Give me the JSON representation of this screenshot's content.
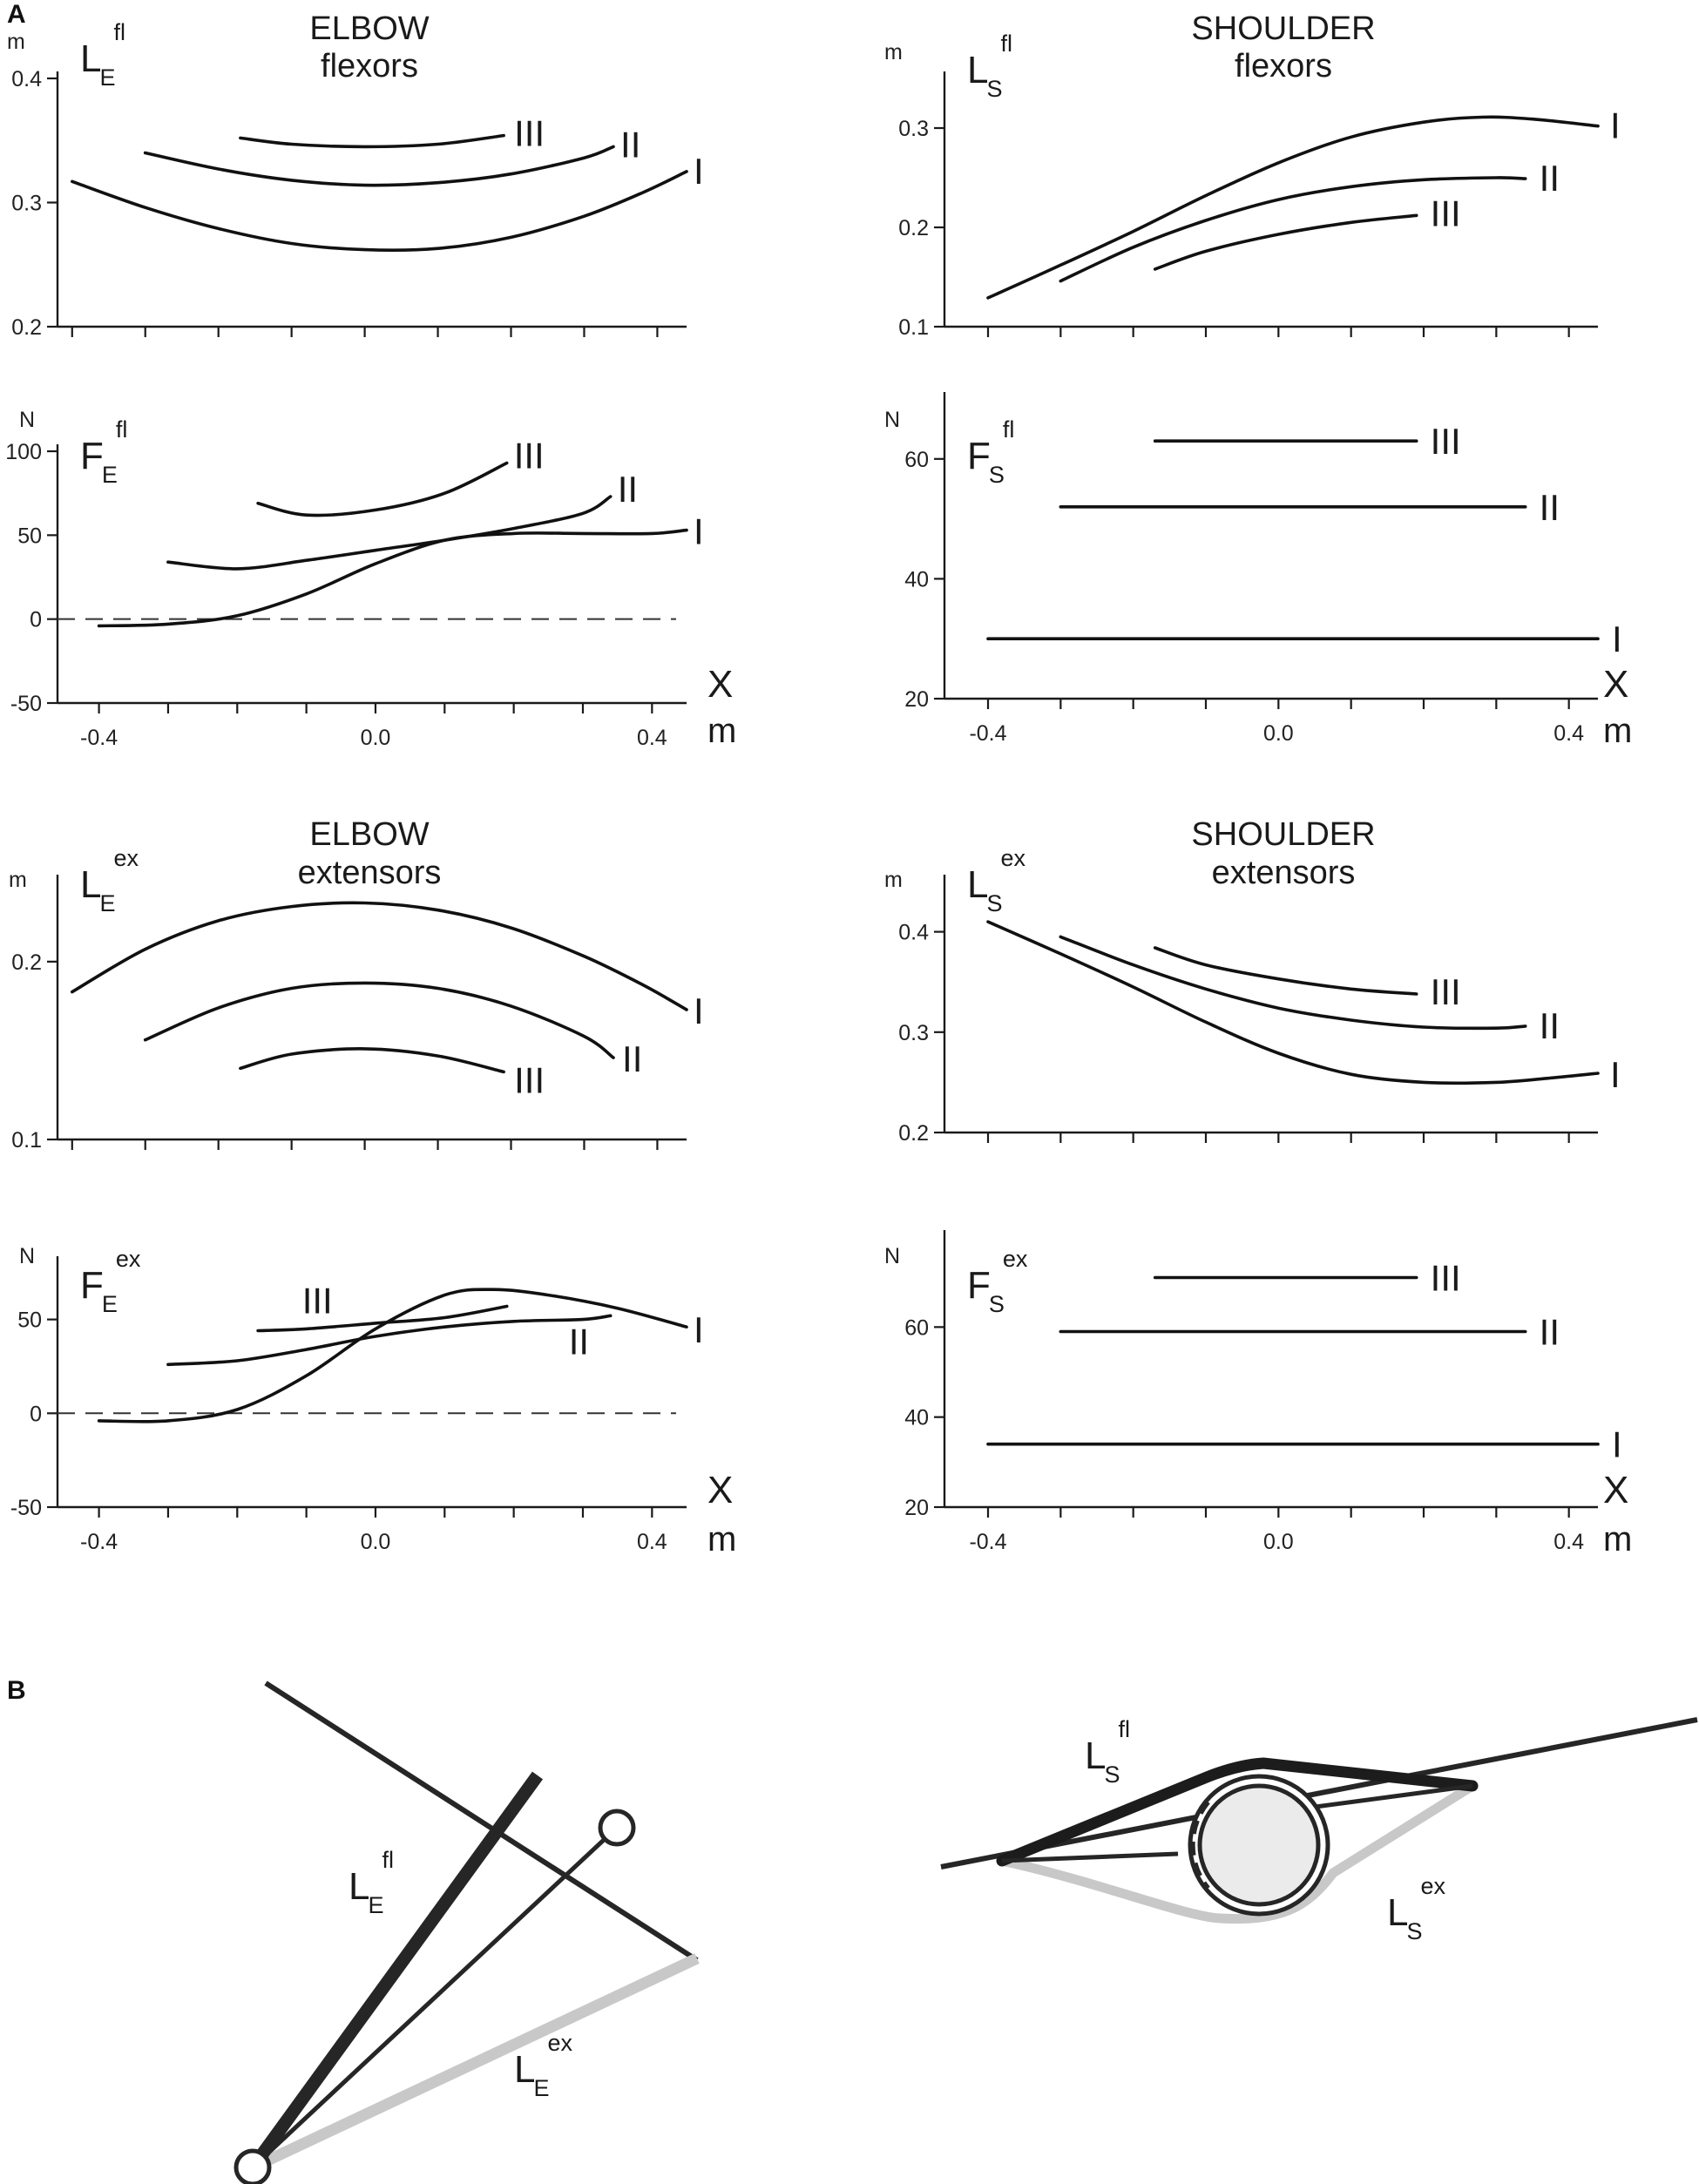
{
  "panel_letters": {
    "a": "A",
    "b": "B"
  },
  "titles": {
    "elbow_flexors": [
      "ELBOW",
      "flexors"
    ],
    "shoulder_flexors": [
      "SHOULDER",
      "flexors"
    ],
    "elbow_extensors": [
      "ELBOW",
      "extensors"
    ],
    "shoulder_extensors": [
      "SHOULDER",
      "extensors"
    ]
  },
  "colors": {
    "ink": "#1a1a1a",
    "grey_muscle": "#c8c8c8",
    "joint_fill": "#ebebeb"
  },
  "chart_data": [
    {
      "id": "LE_fl",
      "type": "line",
      "ylabel": {
        "main": "L",
        "sub": "E",
        "sup": "fl"
      },
      "unit": "m",
      "xlim": [
        -0.42,
        0.44
      ],
      "ylim": [
        0.2,
        0.4
      ],
      "yticks": [
        0.2,
        0.3,
        0.4
      ],
      "ytick_labels": [
        "0.2",
        "0.3",
        "0.4"
      ],
      "xticks": [
        -0.4,
        -0.3,
        -0.2,
        -0.1,
        0.0,
        0.1,
        0.2,
        0.3,
        0.4
      ],
      "series": [
        {
          "name": "I",
          "x": [
            -0.4,
            -0.3,
            -0.2,
            -0.1,
            0.0,
            0.1,
            0.2,
            0.3,
            0.38,
            0.44
          ],
          "y": [
            0.317,
            0.296,
            0.279,
            0.267,
            0.262,
            0.263,
            0.272,
            0.289,
            0.308,
            0.325
          ]
        },
        {
          "name": "II",
          "x": [
            -0.3,
            -0.2,
            -0.1,
            0.0,
            0.1,
            0.2,
            0.3,
            0.34
          ],
          "y": [
            0.34,
            0.327,
            0.318,
            0.314,
            0.316,
            0.323,
            0.336,
            0.345
          ]
        },
        {
          "name": "III",
          "x": [
            -0.17,
            -0.1,
            0.0,
            0.1,
            0.19
          ],
          "y": [
            0.352,
            0.347,
            0.345,
            0.347,
            0.354
          ]
        }
      ]
    },
    {
      "id": "LS_fl",
      "type": "line",
      "ylabel": {
        "main": "L",
        "sub": "S",
        "sup": "fl"
      },
      "unit": "m",
      "xlim": [
        -0.46,
        0.44
      ],
      "ylim": [
        0.1,
        0.35
      ],
      "yticks": [
        0.1,
        0.2,
        0.3
      ],
      "ytick_labels": [
        "0.1",
        "0.2",
        "0.3"
      ],
      "xticks": [
        -0.4,
        -0.3,
        -0.2,
        -0.1,
        0.0,
        0.1,
        0.2,
        0.3,
        0.4
      ],
      "series": [
        {
          "name": "I",
          "x": [
            -0.4,
            -0.3,
            -0.2,
            -0.1,
            0.0,
            0.1,
            0.2,
            0.28,
            0.35,
            0.44
          ],
          "y": [
            0.129,
            0.162,
            0.196,
            0.232,
            0.265,
            0.291,
            0.306,
            0.311,
            0.309,
            0.302
          ]
        },
        {
          "name": "II",
          "x": [
            -0.3,
            -0.2,
            -0.1,
            0.0,
            0.1,
            0.2,
            0.3,
            0.34
          ],
          "y": [
            0.146,
            0.18,
            0.207,
            0.228,
            0.241,
            0.248,
            0.25,
            0.249
          ]
        },
        {
          "name": "III",
          "x": [
            -0.17,
            -0.1,
            0.0,
            0.1,
            0.19
          ],
          "y": [
            0.158,
            0.176,
            0.193,
            0.205,
            0.212
          ]
        }
      ]
    },
    {
      "id": "FE_fl",
      "type": "line",
      "ylabel": {
        "main": "F",
        "sub": "E",
        "sup": "fl"
      },
      "unit": "N",
      "xlim": [
        -0.46,
        0.45
      ],
      "ylim": [
        -50,
        100
      ],
      "yticks": [
        -50,
        0,
        50,
        100
      ],
      "ytick_labels": [
        "-50",
        "0",
        "50",
        "100"
      ],
      "xticks": [
        -0.4,
        -0.3,
        -0.2,
        -0.1,
        0.0,
        0.1,
        0.2,
        0.3,
        0.4
      ],
      "xtick_labels": [
        "-0.4",
        "0.0",
        "0.4"
      ],
      "xtick_label_values": [
        -0.4,
        0.0,
        0.4
      ],
      "xlabel": "X",
      "xunit": "m",
      "zero_line": true,
      "series": [
        {
          "name": "I",
          "x": [
            -0.4,
            -0.3,
            -0.2,
            -0.1,
            0.0,
            0.1,
            0.2,
            0.3,
            0.4,
            0.45
          ],
          "y": [
            -4,
            -3,
            2,
            15,
            33,
            47,
            51,
            51,
            51,
            53
          ]
        },
        {
          "name": "II",
          "x": [
            -0.3,
            -0.2,
            -0.1,
            0.0,
            0.1,
            0.2,
            0.3,
            0.34
          ],
          "y": [
            34,
            30,
            35,
            41,
            47,
            54,
            63,
            73
          ]
        },
        {
          "name": "III",
          "x": [
            -0.17,
            -0.1,
            0.0,
            0.1,
            0.19
          ],
          "y": [
            69,
            62,
            65,
            75,
            93
          ]
        }
      ]
    },
    {
      "id": "FS_fl",
      "type": "line",
      "ylabel": {
        "main": "F",
        "sub": "S",
        "sup": "fl"
      },
      "unit": "N",
      "xlim": [
        -0.46,
        0.44
      ],
      "ylim": [
        20,
        70
      ],
      "yticks": [
        20,
        40,
        60
      ],
      "ytick_labels": [
        "20",
        "40",
        "60"
      ],
      "xticks": [
        -0.4,
        -0.3,
        -0.2,
        -0.1,
        0.0,
        0.1,
        0.2,
        0.3,
        0.4
      ],
      "xtick_labels": [
        "-0.4",
        "0.0",
        "0.4"
      ],
      "xtick_label_values": [
        -0.4,
        0.0,
        0.4
      ],
      "xlabel": "X",
      "xunit": "m",
      "series": [
        {
          "name": "I",
          "x": [
            -0.4,
            0.44
          ],
          "y": [
            30,
            30
          ]
        },
        {
          "name": "II",
          "x": [
            -0.3,
            0.34
          ],
          "y": [
            52,
            52
          ]
        },
        {
          "name": "III",
          "x": [
            -0.17,
            0.19
          ],
          "y": [
            63,
            63
          ]
        }
      ]
    },
    {
      "id": "LE_ex",
      "type": "line",
      "ylabel": {
        "main": "L",
        "sub": "E",
        "sup": "ex"
      },
      "unit": "m",
      "xlim": [
        -0.42,
        0.44
      ],
      "ylim": [
        0.1,
        0.245
      ],
      "yticks": [
        0.1,
        0.2
      ],
      "ytick_labels": [
        "0.1",
        "0.2"
      ],
      "xticks": [
        -0.4,
        -0.3,
        -0.2,
        -0.1,
        0.0,
        0.1,
        0.2,
        0.3,
        0.4
      ],
      "series": [
        {
          "name": "I",
          "x": [
            -0.4,
            -0.3,
            -0.2,
            -0.1,
            0.0,
            0.1,
            0.2,
            0.3,
            0.38,
            0.44
          ],
          "y": [
            0.183,
            0.207,
            0.223,
            0.231,
            0.233,
            0.229,
            0.219,
            0.203,
            0.187,
            0.173
          ]
        },
        {
          "name": "II",
          "x": [
            -0.3,
            -0.2,
            -0.1,
            0.0,
            0.1,
            0.2,
            0.3,
            0.34
          ],
          "y": [
            0.156,
            0.174,
            0.185,
            0.188,
            0.185,
            0.175,
            0.158,
            0.146
          ]
        },
        {
          "name": "III",
          "x": [
            -0.17,
            -0.1,
            0.0,
            0.1,
            0.19
          ],
          "y": [
            0.14,
            0.148,
            0.151,
            0.147,
            0.138
          ]
        }
      ]
    },
    {
      "id": "LS_ex",
      "type": "line",
      "ylabel": {
        "main": "L",
        "sub": "S",
        "sup": "ex"
      },
      "unit": "m",
      "xlim": [
        -0.46,
        0.44
      ],
      "ylim": [
        0.2,
        0.45
      ],
      "yticks": [
        0.2,
        0.3,
        0.4
      ],
      "ytick_labels": [
        "0.2",
        "0.3",
        "0.4"
      ],
      "xticks": [
        -0.4,
        -0.3,
        -0.2,
        -0.1,
        0.0,
        0.1,
        0.2,
        0.3,
        0.4
      ],
      "series": [
        {
          "name": "I",
          "x": [
            -0.4,
            -0.3,
            -0.2,
            -0.1,
            0.0,
            0.1,
            0.2,
            0.3,
            0.37,
            0.44
          ],
          "y": [
            0.41,
            0.378,
            0.345,
            0.31,
            0.279,
            0.258,
            0.25,
            0.25,
            0.254,
            0.259
          ]
        },
        {
          "name": "II",
          "x": [
            -0.3,
            -0.2,
            -0.1,
            0.0,
            0.1,
            0.2,
            0.3,
            0.34
          ],
          "y": [
            0.395,
            0.367,
            0.343,
            0.324,
            0.312,
            0.305,
            0.304,
            0.306
          ]
        },
        {
          "name": "III",
          "x": [
            -0.17,
            -0.1,
            0.0,
            0.1,
            0.19
          ],
          "y": [
            0.384,
            0.367,
            0.353,
            0.343,
            0.338
          ]
        }
      ]
    },
    {
      "id": "FE_ex",
      "type": "line",
      "ylabel": {
        "main": "F",
        "sub": "E",
        "sup": "ex"
      },
      "unit": "N",
      "xlim": [
        -0.46,
        0.45
      ],
      "ylim": [
        -50,
        80
      ],
      "yticks": [
        -50,
        0,
        50
      ],
      "ytick_labels": [
        "-50",
        "0",
        "50"
      ],
      "xticks": [
        -0.4,
        -0.3,
        -0.2,
        -0.1,
        0.0,
        0.1,
        0.2,
        0.3,
        0.4
      ],
      "xtick_labels": [
        "-0.4",
        "0.0",
        "0.4"
      ],
      "xtick_label_values": [
        -0.4,
        0.0,
        0.4
      ],
      "xlabel": "X",
      "xunit": "m",
      "zero_line": true,
      "series": [
        {
          "name": "I",
          "x": [
            -0.4,
            -0.3,
            -0.2,
            -0.1,
            0.0,
            0.1,
            0.17,
            0.25,
            0.35,
            0.45
          ],
          "y": [
            -4,
            -4,
            2,
            20,
            45,
            63,
            66,
            63,
            56,
            46
          ]
        },
        {
          "name": "II",
          "x": [
            -0.3,
            -0.2,
            -0.1,
            0.0,
            0.1,
            0.2,
            0.3,
            0.34
          ],
          "y": [
            26,
            28,
            34,
            41,
            46,
            49,
            50,
            52
          ]
        },
        {
          "name": "III",
          "x": [
            -0.17,
            -0.1,
            0.0,
            0.1,
            0.19
          ],
          "y": [
            44,
            45,
            48,
            51,
            57
          ]
        }
      ]
    },
    {
      "id": "FS_ex",
      "type": "line",
      "ylabel": {
        "main": "F",
        "sub": "S",
        "sup": "ex"
      },
      "unit": "N",
      "xlim": [
        -0.46,
        0.44
      ],
      "ylim": [
        20,
        80
      ],
      "yticks": [
        20,
        40,
        60
      ],
      "ytick_labels": [
        "20",
        "40",
        "60"
      ],
      "xticks": [
        -0.4,
        -0.3,
        -0.2,
        -0.1,
        0.0,
        0.1,
        0.2,
        0.3,
        0.4
      ],
      "xtick_labels": [
        "-0.4",
        "0.0",
        "0.4"
      ],
      "xtick_label_values": [
        -0.4,
        0.0,
        0.4
      ],
      "xlabel": "X",
      "xunit": "m",
      "series": [
        {
          "name": "I",
          "x": [
            -0.4,
            0.44
          ],
          "y": [
            34,
            34
          ]
        },
        {
          "name": "II",
          "x": [
            -0.3,
            0.34
          ],
          "y": [
            59,
            59
          ]
        },
        {
          "name": "III",
          "x": [
            -0.17,
            0.19
          ],
          "y": [
            71,
            71
          ]
        }
      ]
    }
  ],
  "diagram": {
    "elbow": {
      "flexor_label": {
        "main": "L",
        "sub": "E",
        "sup": "fl"
      },
      "extensor_label": {
        "main": "L",
        "sub": "E",
        "sup": "ex"
      }
    },
    "shoulder": {
      "flexor_label": {
        "main": "L",
        "sub": "S",
        "sup": "fl"
      },
      "extensor_label": {
        "main": "L",
        "sub": "S",
        "sup": "ex"
      }
    }
  }
}
